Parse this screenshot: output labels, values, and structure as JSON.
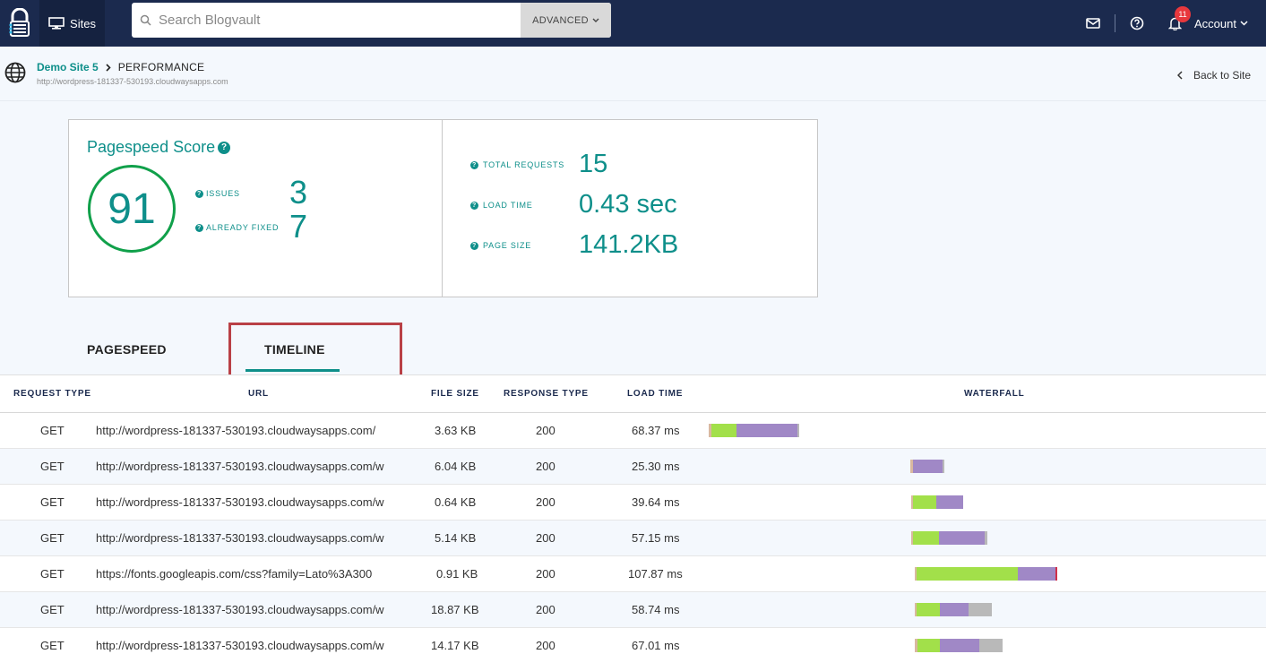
{
  "nav": {
    "sites_label": "Sites",
    "search_placeholder": "Search Blogvault",
    "advanced_label": "ADVANCED",
    "notification_count": "11",
    "account_label": "Account"
  },
  "header": {
    "site_name": "Demo Site 5",
    "page_name": "PERFORMANCE",
    "site_url": "http://wordpress-181337-530193.cloudwaysapps.com",
    "back_label": "Back to Site"
  },
  "pagespeed": {
    "title": "Pagespeed Score",
    "score": "91",
    "issues_label": "ISSUES",
    "issues_value": "3",
    "fixed_label": "ALREADY FIXED",
    "fixed_value": "7"
  },
  "metrics": {
    "total_requests_label": "TOTAL REQUESTS",
    "total_requests": "15",
    "load_time_label": "LOAD TIME",
    "load_time": "0.43 sec",
    "page_size_label": "PAGE SIZE",
    "page_size": "141.2KB"
  },
  "tabs": {
    "pagespeed": "PAGESPEED",
    "timeline": "TIMELINE"
  },
  "table": {
    "headers": {
      "request_type": "REQUEST TYPE",
      "url": "URL",
      "file_size": "FILE SIZE",
      "response_type": "RESPONSE TYPE",
      "load_time": "LOAD TIME",
      "waterfall": "WATERFALL"
    },
    "rows": [
      {
        "method": "GET",
        "url": "http://wordpress-181337-530193.cloudwaysapps.com/",
        "size": "3.63 KB",
        "status": "200",
        "time": "68.37 ms"
      },
      {
        "method": "GET",
        "url": "http://wordpress-181337-530193.cloudwaysapps.com/w",
        "size": "6.04 KB",
        "status": "200",
        "time": "25.30 ms"
      },
      {
        "method": "GET",
        "url": "http://wordpress-181337-530193.cloudwaysapps.com/w",
        "size": "0.64 KB",
        "status": "200",
        "time": "39.64 ms"
      },
      {
        "method": "GET",
        "url": "http://wordpress-181337-530193.cloudwaysapps.com/w",
        "size": "5.14 KB",
        "status": "200",
        "time": "57.15 ms"
      },
      {
        "method": "GET",
        "url": "https://fonts.googleapis.com/css?family=Lato%3A300",
        "size": "0.91 KB",
        "status": "200",
        "time": "107.87 ms"
      },
      {
        "method": "GET",
        "url": "http://wordpress-181337-530193.cloudwaysapps.com/w",
        "size": "18.87 KB",
        "status": "200",
        "time": "58.74 ms"
      },
      {
        "method": "GET",
        "url": "http://wordpress-181337-530193.cloudwaysapps.com/w",
        "size": "14.17 KB",
        "status": "200",
        "time": "67.01 ms"
      }
    ]
  },
  "colors": {
    "nav_bg": "#1b2a4e",
    "accent": "#0e8f8a",
    "score_ring": "#10a04a",
    "waterfall_wait": "#a2e04a",
    "waterfall_receive": "#a088c6",
    "waterfall_idle": "#b9b9b9",
    "highlight": "#b94046"
  }
}
